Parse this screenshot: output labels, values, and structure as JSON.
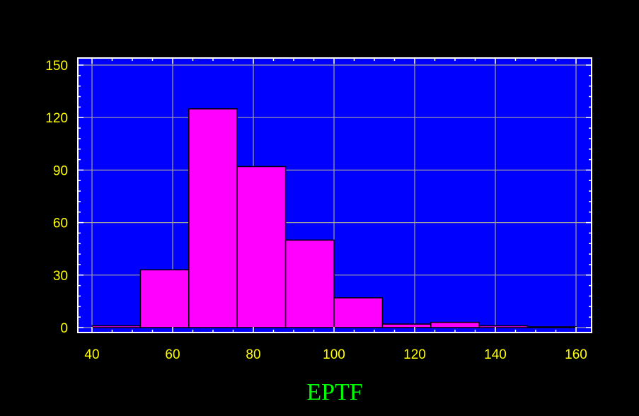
{
  "chart_data": {
    "type": "bar",
    "title": "",
    "xlabel": "EPTF",
    "ylabel": "",
    "bins": [
      {
        "x0": 40,
        "x1": 52,
        "value": 1
      },
      {
        "x0": 52,
        "x1": 64,
        "value": 33
      },
      {
        "x0": 64,
        "x1": 76,
        "value": 125
      },
      {
        "x0": 76,
        "x1": 88,
        "value": 92
      },
      {
        "x0": 88,
        "x1": 100,
        "value": 50
      },
      {
        "x0": 100,
        "x1": 112,
        "value": 17
      },
      {
        "x0": 112,
        "x1": 124,
        "value": 2
      },
      {
        "x0": 124,
        "x1": 136,
        "value": 3
      },
      {
        "x0": 136,
        "x1": 148,
        "value": 1
      },
      {
        "x0": 148,
        "x1": 160,
        "value": 0
      }
    ],
    "xlim": [
      40,
      160
    ],
    "ylim": [
      0,
      150
    ],
    "x_ticks": [
      "40",
      "60",
      "80",
      "100",
      "120",
      "140",
      "160"
    ],
    "y_ticks": [
      "0",
      "30",
      "60",
      "90",
      "120",
      "150"
    ],
    "grid": true,
    "colors": {
      "background": "#000000",
      "plot_area": "#0000ff",
      "bar_fill": "#ff00ff",
      "bar_edge": "#000000",
      "grid": "#a0a0a0",
      "axes": "#ffffff",
      "tick_label": "#ffff00",
      "x_title": "#00ff00"
    }
  }
}
